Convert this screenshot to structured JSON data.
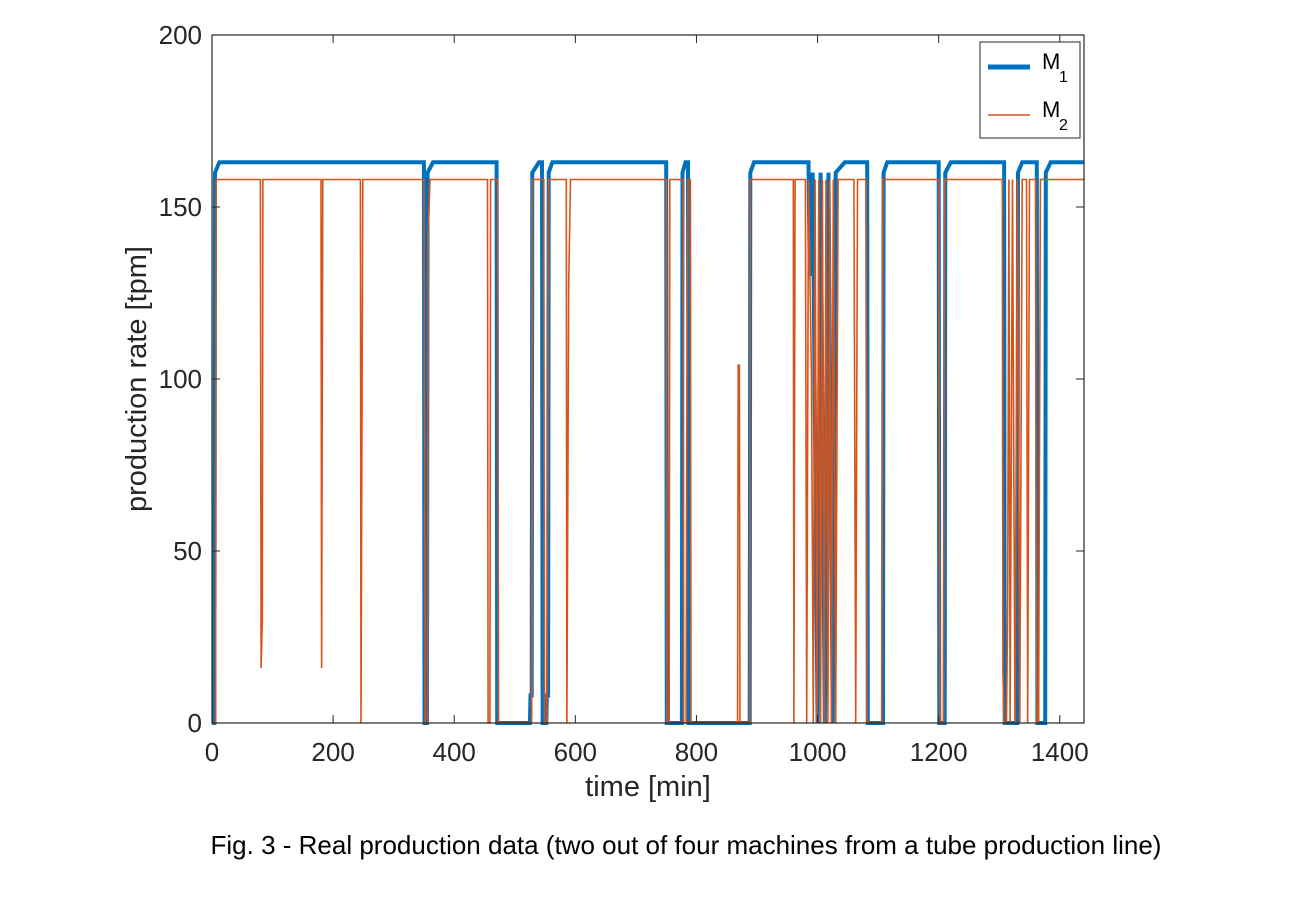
{
  "caption": "Fig. 3 - Real production data (two out of four machines from a tube production line)",
  "chart_data": {
    "type": "line",
    "xlabel": "time [min]",
    "ylabel": "production rate [tpm]",
    "xlim": [
      0,
      1440
    ],
    "ylim": [
      0,
      200
    ],
    "xticks": [
      "0",
      "200",
      "400",
      "600",
      "800",
      "1000",
      "1200",
      "1400"
    ],
    "yticks": [
      "0",
      "50",
      "100",
      "150",
      "200"
    ],
    "grid": false,
    "legend_placement": "top-right",
    "series": [
      {
        "name": "M",
        "subscript": "1",
        "color": "#0072BD",
        "line": "thick",
        "segments": [
          [
            2,
            163,
            0
          ],
          [
            355,
            163,
            0
          ],
          [
            540,
            163,
            0
          ],
          [
            560,
            163,
            0
          ],
          [
            770,
            163,
            0
          ],
          [
            890,
            163,
            0
          ],
          [
            1060,
            163,
            0
          ],
          [
            1110,
            163,
            0
          ],
          [
            1310,
            163,
            0
          ],
          [
            1370,
            163,
            0
          ]
        ],
        "points": [
          [
            0,
            0
          ],
          [
            4,
            0
          ],
          [
            5,
            160
          ],
          [
            12,
            163
          ],
          [
            350,
            163
          ],
          [
            351,
            0
          ],
          [
            355,
            0
          ],
          [
            356,
            160
          ],
          [
            365,
            163
          ],
          [
            470,
            163
          ],
          [
            471,
            0
          ],
          [
            525,
            0
          ],
          [
            526,
            8
          ],
          [
            528,
            8
          ],
          [
            529,
            160
          ],
          [
            540,
            163
          ],
          [
            545,
            163
          ],
          [
            546,
            0
          ],
          [
            552,
            0
          ],
          [
            553,
            8
          ],
          [
            555,
            8
          ],
          [
            556,
            160
          ],
          [
            562,
            163
          ],
          [
            750,
            163
          ],
          [
            751,
            0
          ],
          [
            776,
            0
          ],
          [
            777,
            160
          ],
          [
            782,
            163
          ],
          [
            786,
            163
          ],
          [
            787,
            0
          ],
          [
            888,
            0
          ],
          [
            889,
            160
          ],
          [
            895,
            163
          ],
          [
            985,
            163
          ],
          [
            987,
            130
          ],
          [
            992,
            160
          ],
          [
            1000,
            0
          ],
          [
            1005,
            160
          ],
          [
            1012,
            0
          ],
          [
            1018,
            160
          ],
          [
            1025,
            0
          ],
          [
            1030,
            160
          ],
          [
            1045,
            163
          ],
          [
            1082,
            163
          ],
          [
            1083,
            0
          ],
          [
            1108,
            0
          ],
          [
            1109,
            160
          ],
          [
            1115,
            163
          ],
          [
            1200,
            163
          ],
          [
            1201,
            0
          ],
          [
            1210,
            0
          ],
          [
            1211,
            160
          ],
          [
            1220,
            163
          ],
          [
            1308,
            163
          ],
          [
            1309,
            0
          ],
          [
            1330,
            0
          ],
          [
            1331,
            160
          ],
          [
            1338,
            163
          ],
          [
            1362,
            163
          ],
          [
            1363,
            0
          ],
          [
            1376,
            0
          ],
          [
            1377,
            160
          ],
          [
            1385,
            163
          ],
          [
            1440,
            163
          ]
        ]
      },
      {
        "name": "M",
        "subscript": "2",
        "color": "#D95319",
        "line": "thin",
        "points": [
          [
            0,
            0
          ],
          [
            6,
            0
          ],
          [
            7,
            158
          ],
          [
            80,
            158
          ],
          [
            81,
            16
          ],
          [
            83,
            30
          ],
          [
            84,
            158
          ],
          [
            180,
            158
          ],
          [
            181,
            16
          ],
          [
            183,
            158
          ],
          [
            245,
            158
          ],
          [
            246,
            0
          ],
          [
            248,
            110
          ],
          [
            249,
            158
          ],
          [
            350,
            158
          ],
          [
            352,
            0
          ],
          [
            356,
            0
          ],
          [
            357,
            142
          ],
          [
            360,
            158
          ],
          [
            455,
            158
          ],
          [
            456,
            0
          ],
          [
            459,
            0
          ],
          [
            460,
            158
          ],
          [
            472,
            158
          ],
          [
            473,
            0
          ],
          [
            528,
            0
          ],
          [
            529,
            158
          ],
          [
            548,
            158
          ],
          [
            549,
            0
          ],
          [
            553,
            0
          ],
          [
            554,
            50
          ],
          [
            556,
            158
          ],
          [
            585,
            158
          ],
          [
            586,
            0
          ],
          [
            589,
            128
          ],
          [
            592,
            158
          ],
          [
            750,
            158
          ],
          [
            751,
            0
          ],
          [
            755,
            0
          ],
          [
            756,
            158
          ],
          [
            778,
            158
          ],
          [
            779,
            0
          ],
          [
            783,
            0
          ],
          [
            784,
            90
          ],
          [
            786,
            158
          ],
          [
            790,
            158
          ],
          [
            791,
            0
          ],
          [
            868,
            0
          ],
          [
            869,
            104
          ],
          [
            871,
            104
          ],
          [
            872,
            0
          ],
          [
            888,
            0
          ],
          [
            889,
            158
          ],
          [
            960,
            158
          ],
          [
            961,
            0
          ],
          [
            963,
            158
          ],
          [
            980,
            158
          ],
          [
            982,
            0
          ],
          [
            985,
            158
          ],
          [
            990,
            100
          ],
          [
            993,
            0
          ],
          [
            996,
            158
          ],
          [
            999,
            0
          ],
          [
            1002,
            158
          ],
          [
            1005,
            0
          ],
          [
            1008,
            158
          ],
          [
            1011,
            0
          ],
          [
            1014,
            158
          ],
          [
            1017,
            0
          ],
          [
            1020,
            158
          ],
          [
            1023,
            0
          ],
          [
            1026,
            158
          ],
          [
            1030,
            0
          ],
          [
            1034,
            158
          ],
          [
            1040,
            158
          ],
          [
            1060,
            158
          ],
          [
            1063,
            0
          ],
          [
            1066,
            158
          ],
          [
            1080,
            158
          ],
          [
            1082,
            0
          ],
          [
            1106,
            0
          ],
          [
            1108,
            158
          ],
          [
            1200,
            158
          ],
          [
            1202,
            0
          ],
          [
            1208,
            0
          ],
          [
            1210,
            158
          ],
          [
            1305,
            158
          ],
          [
            1306,
            15
          ],
          [
            1308,
            0
          ],
          [
            1312,
            0
          ],
          [
            1314,
            35
          ],
          [
            1316,
            158
          ],
          [
            1318,
            0
          ],
          [
            1322,
            158
          ],
          [
            1326,
            0
          ],
          [
            1330,
            158
          ],
          [
            1334,
            0
          ],
          [
            1338,
            158
          ],
          [
            1345,
            158
          ],
          [
            1347,
            0
          ],
          [
            1350,
            158
          ],
          [
            1360,
            158
          ],
          [
            1362,
            0
          ],
          [
            1365,
            0
          ],
          [
            1368,
            158
          ],
          [
            1380,
            158
          ],
          [
            1440,
            158
          ]
        ]
      }
    ]
  }
}
